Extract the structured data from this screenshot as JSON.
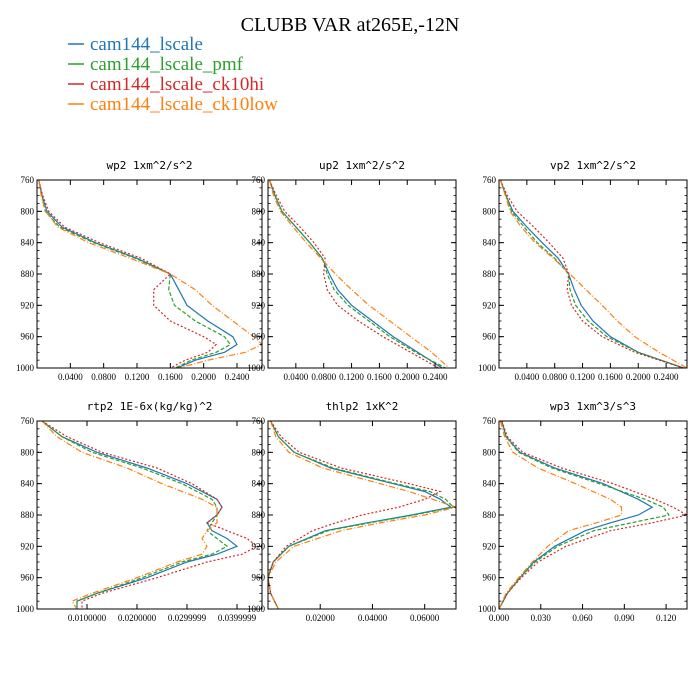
{
  "title": "CLUBB VAR at265E,-12N",
  "legend": [
    {
      "name": "cam144_lscale",
      "color": "#1f77b4"
    },
    {
      "name": "cam144_lscale_pmf",
      "color": "#2ca02c"
    },
    {
      "name": "cam144_lscale_ck10hi",
      "color": "#d62728"
    },
    {
      "name": "cam144_lscale_ck10low",
      "color": "#ff7f0e"
    }
  ],
  "chart_data": [
    {
      "type": "line",
      "title": "wp2  1xm^2/s^2",
      "xlim": [
        0,
        0.27
      ],
      "ylim": [
        760,
        1000
      ],
      "y_inverted": true,
      "xticks": [
        "0.0400",
        "0.0800",
        "0.1200",
        "0.1600",
        "0.2000",
        "0.2400"
      ],
      "xtick_values": [
        0.04,
        0.08,
        0.12,
        0.16,
        0.2,
        0.24
      ],
      "yticks": [
        760,
        800,
        840,
        880,
        920,
        960,
        1000
      ],
      "p": [
        760,
        780,
        800,
        820,
        840,
        860,
        880,
        900,
        920,
        940,
        960,
        970,
        980,
        990,
        1000
      ],
      "series": [
        {
          "name": "cam144_lscale",
          "values": [
            0.002,
            0.006,
            0.012,
            0.03,
            0.07,
            0.12,
            0.16,
            0.17,
            0.18,
            0.205,
            0.235,
            0.24,
            0.225,
            0.19,
            0.168
          ]
        },
        {
          "name": "cam144_lscale_pmf",
          "values": [
            0.002,
            0.006,
            0.01,
            0.027,
            0.068,
            0.118,
            0.16,
            0.158,
            0.165,
            0.19,
            0.225,
            0.232,
            0.215,
            0.185,
            0.166
          ]
        },
        {
          "name": "cam144_lscale_ck10hi",
          "values": [
            0.002,
            0.007,
            0.014,
            0.033,
            0.075,
            0.125,
            0.16,
            0.14,
            0.14,
            0.16,
            0.2,
            0.215,
            0.205,
            0.178,
            0.16
          ]
        },
        {
          "name": "cam144_lscale_ck10low",
          "values": [
            0.002,
            0.005,
            0.01,
            0.025,
            0.062,
            0.112,
            0.16,
            0.19,
            0.21,
            0.235,
            0.26,
            0.27,
            0.25,
            0.205,
            0.17
          ]
        }
      ]
    },
    {
      "type": "line",
      "title": "up2  1xm^2/s^2",
      "xlim": [
        0,
        0.27
      ],
      "ylim": [
        760,
        1000
      ],
      "y_inverted": true,
      "xticks": [
        "0.0400",
        "0.0800",
        "0.1200",
        "0.1600",
        "0.2000",
        "0.2400"
      ],
      "xtick_values": [
        0.04,
        0.08,
        0.12,
        0.16,
        0.2,
        0.24
      ],
      "yticks": [
        760,
        800,
        840,
        880,
        920,
        960,
        1000
      ],
      "p": [
        760,
        780,
        800,
        820,
        840,
        860,
        880,
        900,
        920,
        940,
        960,
        980,
        1000
      ],
      "series": [
        {
          "name": "cam144_lscale",
          "values": [
            0.002,
            0.01,
            0.02,
            0.04,
            0.06,
            0.078,
            0.088,
            0.1,
            0.12,
            0.15,
            0.18,
            0.215,
            0.25
          ]
        },
        {
          "name": "cam144_lscale_pmf",
          "values": [
            0.002,
            0.01,
            0.02,
            0.04,
            0.06,
            0.078,
            0.085,
            0.095,
            0.115,
            0.145,
            0.175,
            0.212,
            0.255
          ]
        },
        {
          "name": "cam144_lscale_ck10hi",
          "values": [
            0.002,
            0.012,
            0.024,
            0.046,
            0.066,
            0.082,
            0.08,
            0.085,
            0.1,
            0.13,
            0.165,
            0.205,
            0.245
          ]
        },
        {
          "name": "cam144_lscale_ck10low",
          "values": [
            0.002,
            0.008,
            0.018,
            0.036,
            0.055,
            0.076,
            0.097,
            0.12,
            0.145,
            0.175,
            0.205,
            0.235,
            0.26
          ]
        }
      ]
    },
    {
      "type": "line",
      "title": "vp2  1xm^2/s^2",
      "xlim": [
        0,
        0.27
      ],
      "ylim": [
        760,
        1000
      ],
      "y_inverted": true,
      "xticks": [
        "0.0400",
        "0.0800",
        "0.1200",
        "0.1600",
        "0.2000",
        "0.2400"
      ],
      "xtick_values": [
        0.04,
        0.08,
        0.12,
        0.16,
        0.2,
        0.24
      ],
      "yticks": [
        760,
        800,
        840,
        880,
        920,
        960,
        1000
      ],
      "p": [
        760,
        780,
        800,
        820,
        840,
        860,
        880,
        900,
        920,
        940,
        960,
        980,
        1000
      ],
      "series": [
        {
          "name": "cam144_lscale",
          "values": [
            0.002,
            0.01,
            0.02,
            0.04,
            0.062,
            0.085,
            0.1,
            0.108,
            0.118,
            0.135,
            0.16,
            0.2,
            0.265
          ]
        },
        {
          "name": "cam144_lscale_pmf",
          "values": [
            0.002,
            0.01,
            0.018,
            0.036,
            0.055,
            0.08,
            0.1,
            0.102,
            0.11,
            0.128,
            0.155,
            0.2,
            0.265
          ]
        },
        {
          "name": "cam144_lscale_ck10hi",
          "values": [
            0.002,
            0.012,
            0.026,
            0.05,
            0.072,
            0.092,
            0.1,
            0.098,
            0.104,
            0.12,
            0.148,
            0.195,
            0.265
          ]
        },
        {
          "name": "cam144_lscale_ck10low",
          "values": [
            0.002,
            0.009,
            0.016,
            0.032,
            0.052,
            0.078,
            0.102,
            0.125,
            0.148,
            0.17,
            0.195,
            0.23,
            0.27
          ]
        }
      ]
    },
    {
      "type": "line",
      "title": "rtp2  1E-6x(kg/kg)^2",
      "xlim": [
        0,
        0.045
      ],
      "ylim": [
        760,
        1000
      ],
      "y_inverted": true,
      "xticks": [
        "0.0100000",
        "0.0200000",
        "0.0299999",
        "0.0399999"
      ],
      "xtick_values": [
        0.01,
        0.02,
        0.0299999,
        0.0399999
      ],
      "yticks": [
        760,
        800,
        840,
        880,
        920,
        960,
        1000
      ],
      "p": [
        760,
        780,
        800,
        820,
        840,
        860,
        870,
        880,
        890,
        900,
        910,
        920,
        930,
        940,
        960,
        980,
        990,
        1000
      ],
      "series": [
        {
          "name": "cam144_lscale",
          "values": [
            0.001,
            0.005,
            0.012,
            0.022,
            0.03,
            0.036,
            0.037,
            0.036,
            0.034,
            0.035,
            0.038,
            0.04,
            0.036,
            0.03,
            0.022,
            0.012,
            0.008,
            0.008
          ]
        },
        {
          "name": "cam144_lscale_pmf",
          "values": [
            0.001,
            0.005,
            0.011,
            0.021,
            0.029,
            0.035,
            0.036,
            0.036,
            0.035,
            0.034,
            0.036,
            0.038,
            0.035,
            0.029,
            0.021,
            0.012,
            0.008,
            0.008
          ]
        },
        {
          "name": "cam144_lscale_ck10hi",
          "values": [
            0.001,
            0.006,
            0.013,
            0.024,
            0.031,
            0.036,
            0.037,
            0.036,
            0.034,
            0.038,
            0.042,
            0.044,
            0.041,
            0.034,
            0.024,
            0.013,
            0.009,
            0.009
          ]
        },
        {
          "name": "cam144_lscale_ck10low",
          "values": [
            0.001,
            0.004,
            0.009,
            0.018,
            0.025,
            0.033,
            0.036,
            0.036,
            0.036,
            0.034,
            0.033,
            0.034,
            0.033,
            0.028,
            0.02,
            0.011,
            0.007,
            0.008
          ]
        }
      ]
    },
    {
      "type": "line",
      "title": "thlp2  1xK^2",
      "xlim": [
        0,
        0.072
      ],
      "ylim": [
        760,
        1000
      ],
      "y_inverted": true,
      "xticks": [
        "0.02000",
        "0.04000",
        "0.06000"
      ],
      "xtick_values": [
        0.02,
        0.04,
        0.06
      ],
      "yticks": [
        760,
        800,
        840,
        880,
        920,
        960,
        1000
      ],
      "p": [
        760,
        780,
        800,
        820,
        840,
        850,
        860,
        870,
        880,
        890,
        900,
        920,
        940,
        960,
        980,
        1000
      ],
      "series": [
        {
          "name": "cam144_lscale",
          "values": [
            0.001,
            0.004,
            0.01,
            0.024,
            0.048,
            0.06,
            0.066,
            0.07,
            0.055,
            0.038,
            0.022,
            0.008,
            0.002,
            0.0,
            0.001,
            0.004
          ]
        },
        {
          "name": "cam144_lscale_pmf",
          "values": [
            0.001,
            0.004,
            0.01,
            0.025,
            0.049,
            0.062,
            0.068,
            0.071,
            0.056,
            0.039,
            0.023,
            0.008,
            0.002,
            0.0,
            0.001,
            0.004
          ]
        },
        {
          "name": "cam144_lscale_ck10hi",
          "values": [
            0.001,
            0.005,
            0.012,
            0.028,
            0.054,
            0.066,
            0.06,
            0.05,
            0.036,
            0.026,
            0.017,
            0.007,
            0.002,
            0.0,
            0.001,
            0.004
          ]
        },
        {
          "name": "cam144_lscale_ck10low",
          "values": [
            0.001,
            0.003,
            0.008,
            0.021,
            0.043,
            0.054,
            0.063,
            0.072,
            0.06,
            0.043,
            0.028,
            0.01,
            0.003,
            0.0,
            0.001,
            0.004
          ]
        }
      ]
    },
    {
      "type": "line",
      "title": "wp3  1xm^3/s^3",
      "xlim": [
        0,
        0.135
      ],
      "ylim": [
        760,
        1000
      ],
      "y_inverted": true,
      "xticks": [
        "0.000",
        "0.030",
        "0.060",
        "0.090",
        "0.120"
      ],
      "xtick_values": [
        0,
        0.03,
        0.06,
        0.09,
        0.12
      ],
      "yticks": [
        760,
        800,
        840,
        880,
        920,
        960,
        1000
      ],
      "p": [
        760,
        780,
        800,
        820,
        840,
        860,
        870,
        880,
        890,
        900,
        920,
        940,
        960,
        980,
        1000
      ],
      "series": [
        {
          "name": "cam144_lscale",
          "values": [
            0.002,
            0.005,
            0.015,
            0.04,
            0.075,
            0.1,
            0.11,
            0.1,
            0.08,
            0.062,
            0.04,
            0.025,
            0.015,
            0.006,
            0.0
          ]
        },
        {
          "name": "cam144_lscale_pmf",
          "values": [
            0.002,
            0.005,
            0.014,
            0.038,
            0.072,
            0.105,
            0.118,
            0.122,
            0.095,
            0.068,
            0.042,
            0.026,
            0.015,
            0.006,
            0.0
          ]
        },
        {
          "name": "cam144_lscale_ck10hi",
          "values": [
            0.002,
            0.006,
            0.017,
            0.045,
            0.082,
            0.112,
            0.125,
            0.135,
            0.11,
            0.08,
            0.048,
            0.028,
            0.016,
            0.006,
            0.0
          ]
        },
        {
          "name": "cam144_lscale_ck10low",
          "values": [
            0.001,
            0.004,
            0.01,
            0.028,
            0.055,
            0.08,
            0.088,
            0.088,
            0.07,
            0.05,
            0.035,
            0.024,
            0.014,
            0.005,
            0.0
          ]
        }
      ]
    }
  ]
}
